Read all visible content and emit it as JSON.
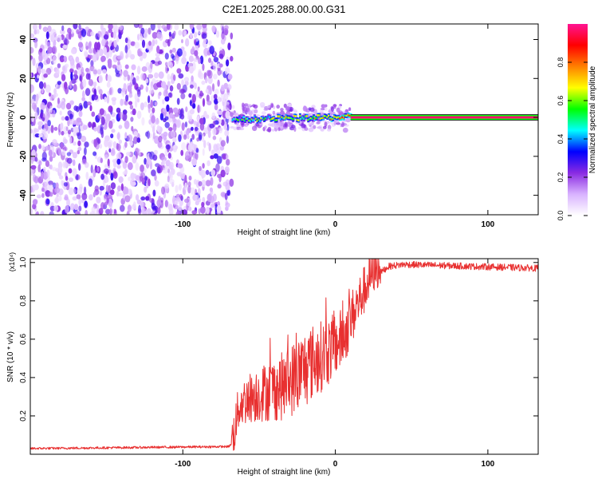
{
  "figure_title": "C2E1.2025.288.00.00.G31",
  "chart_data": [
    {
      "type": "heatmap",
      "title": "C2E1.2025.288.00.00.G31",
      "xlabel": "Height of straight line (km)",
      "ylabel": "Frequency (Hz)",
      "xlim": [
        -200,
        133
      ],
      "ylim": [
        -50,
        48
      ],
      "xticks": [
        -100,
        0,
        100
      ],
      "xtick_labels": [
        "-100",
        "0",
        "100"
      ],
      "yticks": [
        -40,
        -20,
        0,
        20,
        40
      ],
      "ytick_labels": [
        "-40",
        "-20",
        "0",
        "20",
        "40"
      ],
      "noise_region": {
        "x_range": [
          -200,
          -68
        ],
        "frequency_range": [
          -50,
          48
        ],
        "amplitude_range": [
          0.05,
          0.3
        ]
      },
      "transition_region": {
        "x_range": [
          -68,
          10
        ],
        "frequency_center": 0,
        "frequency_halfwidth": 3,
        "amplitude_range": [
          0.3,
          0.9
        ]
      },
      "signal_line": {
        "x_range": [
          10,
          133
        ],
        "frequency": 0,
        "amplitude": 0.97
      },
      "colorbar": {
        "label": "Normalized spectral amplitude",
        "range": [
          0,
          1
        ],
        "ticks": [
          0.0,
          0.2,
          0.4,
          0.6,
          0.8
        ],
        "tick_labels": [
          "0.0",
          "0.2",
          "0.4",
          "0.6",
          "0.8"
        ],
        "colors": [
          "#ffffff",
          "#d9b3ff",
          "#8a2be2",
          "#0000ff",
          "#00ffff",
          "#00ff00",
          "#ffff00",
          "#ff8000",
          "#ff0000",
          "#ff1493"
        ]
      }
    },
    {
      "type": "line",
      "xlabel": "Height of straight line (km)",
      "ylabel": "SNR (10 * v/v)",
      "y_multiplier": "(x10⁴)",
      "xlim": [
        -200,
        133
      ],
      "ylim": [
        0,
        1.02
      ],
      "xticks": [
        -100,
        0,
        100
      ],
      "xtick_labels": [
        "-100",
        "0",
        "100"
      ],
      "yticks": [
        0.2,
        0.4,
        0.6,
        0.8,
        1.0
      ],
      "ytick_labels": [
        "0.2",
        "0.4",
        "0.6",
        "0.8",
        "1.0"
      ],
      "series": [
        {
          "name": "SNR",
          "color": "#e83030",
          "trend_x": [
            -200,
            -70,
            -67,
            -63,
            -55,
            -45,
            -35,
            -25,
            -15,
            -5,
            5,
            15,
            25,
            35,
            45,
            133
          ],
          "trend_y": [
            0.03,
            0.04,
            0.06,
            0.22,
            0.26,
            0.28,
            0.3,
            0.35,
            0.42,
            0.48,
            0.56,
            0.75,
            0.92,
            0.98,
            0.99,
            0.97
          ]
        }
      ]
    }
  ]
}
